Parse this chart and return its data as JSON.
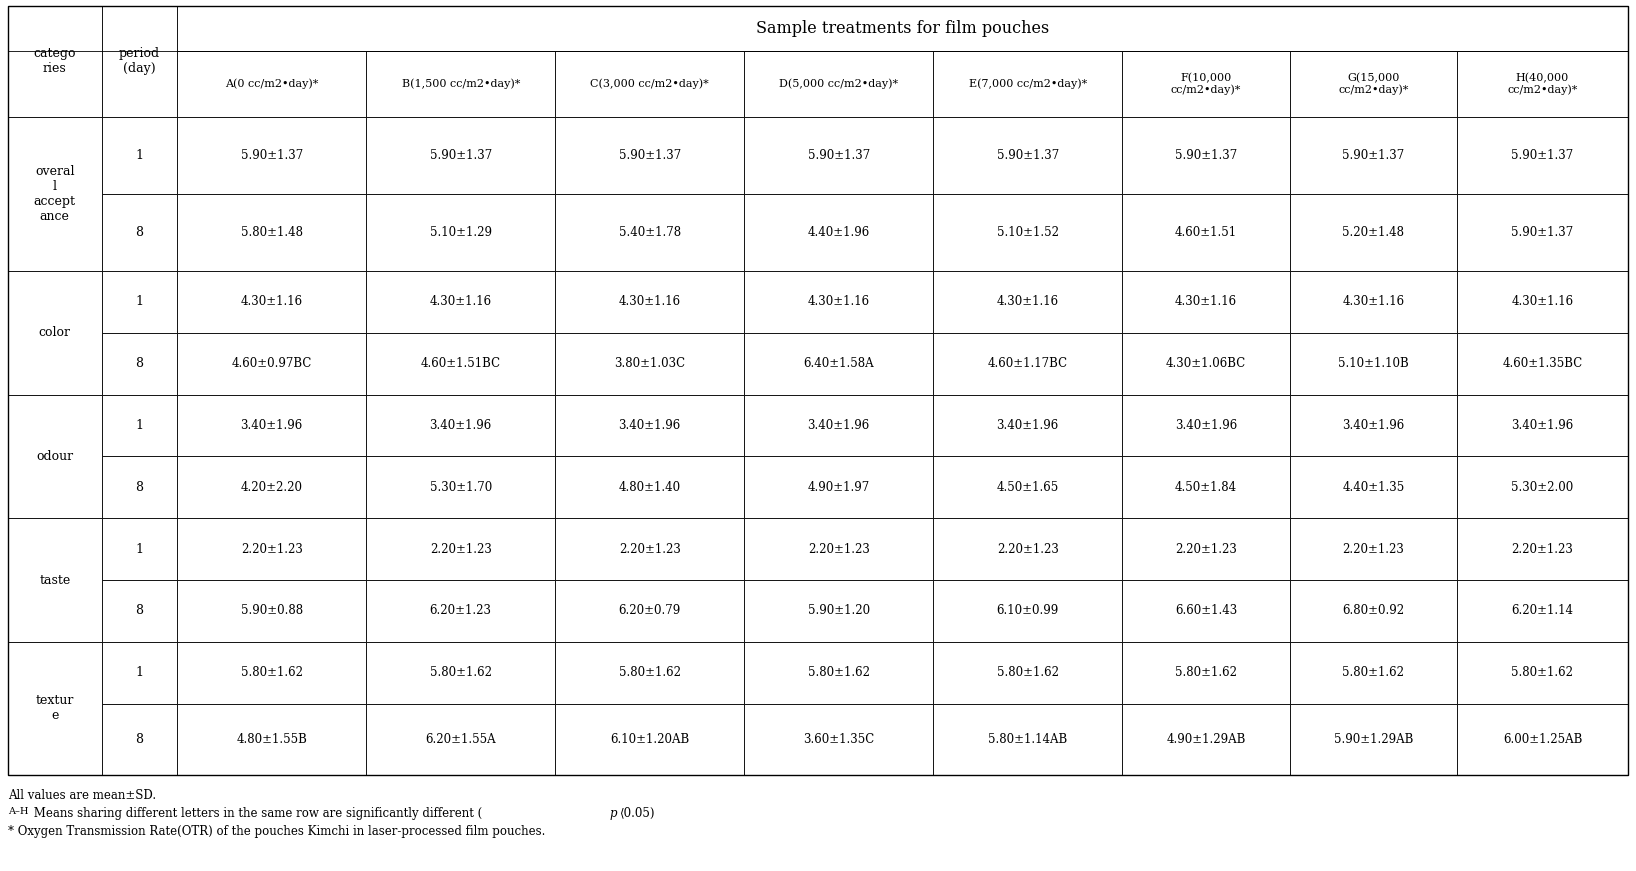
{
  "title": "Sample treatments for film pouches",
  "col_labels": [
    "A(0 cc/m2•day)*",
    "B(1,500 cc/m2•day)*",
    "C(3,000 cc/m2•day)*",
    "D(5,000 cc/m2•day)*",
    "E(7,000 cc/m2•day)*",
    "F(10,000\ncc/m2•day)*",
    "G(15,000\ncc/m2•day)*",
    "H(40,000\ncc/m2•day)*"
  ],
  "row_groups": [
    {
      "category": "overal\nl\naccept\nance",
      "rows": [
        {
          "period": "1",
          "values": [
            "5.90±1.37",
            "5.90±1.37",
            "5.90±1.37",
            "5.90±1.37",
            "5.90±1.37",
            "5.90±1.37",
            "5.90±1.37",
            "5.90±1.37"
          ]
        },
        {
          "period": "8",
          "values": [
            "5.80±1.48",
            "5.10±1.29",
            "5.40±1.78",
            "4.40±1.96",
            "5.10±1.52",
            "4.60±1.51",
            "5.20±1.48",
            "5.90±1.37"
          ]
        }
      ]
    },
    {
      "category": "color",
      "rows": [
        {
          "period": "1",
          "values": [
            "4.30±1.16",
            "4.30±1.16",
            "4.30±1.16",
            "4.30±1.16",
            "4.30±1.16",
            "4.30±1.16",
            "4.30±1.16",
            "4.30±1.16"
          ]
        },
        {
          "period": "8",
          "values": [
            "4.60±0.97BC",
            "4.60±1.51BC",
            "3.80±1.03C",
            "6.40±1.58A",
            "4.60±1.17BC",
            "4.30±1.06BC",
            "5.10±1.10B",
            "4.60±1.35BC"
          ]
        }
      ]
    },
    {
      "category": "odour",
      "rows": [
        {
          "period": "1",
          "values": [
            "3.40±1.96",
            "3.40±1.96",
            "3.40±1.96",
            "3.40±1.96",
            "3.40±1.96",
            "3.40±1.96",
            "3.40±1.96",
            "3.40±1.96"
          ]
        },
        {
          "period": "8",
          "values": [
            "4.20±2.20",
            "5.30±1.70",
            "4.80±1.40",
            "4.90±1.97",
            "4.50±1.65",
            "4.50±1.84",
            "4.40±1.35",
            "5.30±2.00"
          ]
        }
      ]
    },
    {
      "category": "taste",
      "rows": [
        {
          "period": "1",
          "values": [
            "2.20±1.23",
            "2.20±1.23",
            "2.20±1.23",
            "2.20±1.23",
            "2.20±1.23",
            "2.20±1.23",
            "2.20±1.23",
            "2.20±1.23"
          ]
        },
        {
          "period": "8",
          "values": [
            "5.90±0.88",
            "6.20±1.23",
            "6.20±0.79",
            "5.90±1.20",
            "6.10±0.99",
            "6.60±1.43",
            "6.80±0.92",
            "6.20±1.14"
          ]
        }
      ]
    },
    {
      "category": "textur\ne",
      "rows": [
        {
          "period": "1",
          "values": [
            "5.80±1.62",
            "5.80±1.62",
            "5.80±1.62",
            "5.80±1.62",
            "5.80±1.62",
            "5.80±1.62",
            "5.80±1.62",
            "5.80±1.62"
          ]
        },
        {
          "period": "8",
          "values": [
            "4.80±1.55B",
            "6.20±1.55A",
            "6.10±1.20AB",
            "3.60±1.35C",
            "5.80±1.14AB",
            "4.90±1.29AB",
            "5.90±1.29AB",
            "6.00±1.25AB"
          ]
        }
      ]
    }
  ],
  "footnote1": "All values are mean±SD.",
  "footnote2_super": "A–H",
  "footnote2_text": " Means sharing different letters in the same row are significantly different (",
  "footnote2_italic": "p ",
  "footnote2_angle": "⟨",
  "footnote2_end": "0.05)",
  "footnote3": "* Oxygen Transmission Rate(OTR) of the pouches Kimchi in laser-processed film pouches.",
  "bg_color": "#ffffff",
  "lw_outer": 1.0,
  "lw_inner": 0.6,
  "title_fontsize": 11.5,
  "header_fontsize": 8.0,
  "cell_fontsize": 8.5,
  "cat_fontsize": 9.0,
  "footnote_fontsize": 8.5
}
